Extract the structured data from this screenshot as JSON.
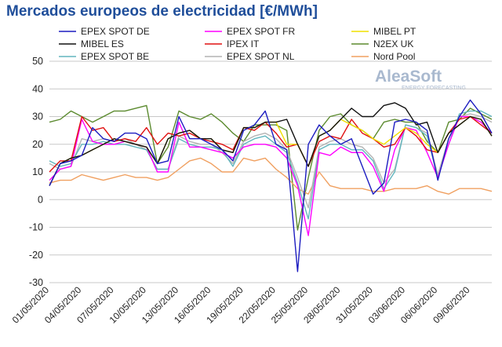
{
  "chart_data": {
    "type": "line",
    "title": "Mercados europeos de electricidad [€/MWh]",
    "watermark": {
      "brand": "AleaSoft",
      "tagline": "ENERGY FORECASTING"
    },
    "categories": [
      "01/05/2020",
      null,
      null,
      "04/05/2020",
      null,
      null,
      "07/05/2020",
      null,
      null,
      "10/05/2020",
      null,
      null,
      "13/05/2020",
      null,
      null,
      "16/05/2020",
      null,
      null,
      "19/05/2020",
      null,
      null,
      "22/05/2020",
      null,
      null,
      "25/05/2020",
      null,
      null,
      "28/05/2020",
      null,
      null,
      "31/05/2020",
      null,
      null,
      "03/06/2020",
      null,
      null,
      "06/06/2020",
      null,
      null,
      "09/06/2020",
      null,
      null
    ],
    "ylim": [
      -30,
      50
    ],
    "yticks": [
      -30,
      -20,
      -10,
      0,
      10,
      20,
      30,
      40,
      50
    ],
    "grid": true,
    "series": [
      {
        "name": "N2EX UK",
        "color": "#5b8a2e",
        "values": [
          28,
          29,
          32,
          30,
          28,
          30,
          32,
          32,
          33,
          34,
          13,
          19,
          32,
          30,
          29,
          31,
          28,
          24,
          21,
          27,
          27,
          27,
          25,
          -11,
          8,
          25,
          30,
          31,
          27,
          25,
          22,
          28,
          29,
          28,
          28,
          21,
          17,
          28,
          29,
          33,
          31,
          29
        ]
      },
      {
        "name": "Nord Pool",
        "color": "#f0a060",
        "values": [
          6,
          7,
          7,
          9,
          8,
          7,
          8,
          9,
          8,
          8,
          7,
          8,
          11,
          14,
          15,
          13,
          10,
          10,
          15,
          14,
          15,
          11,
          8,
          4,
          2,
          10,
          5,
          4,
          4,
          4,
          3,
          3,
          4,
          4,
          4,
          5,
          3,
          2,
          4,
          4,
          4,
          3
        ]
      },
      {
        "name": "EPEX SPOT NL",
        "color": "#b4b4b4",
        "values": [
          13,
          11,
          12,
          22,
          21,
          22,
          21,
          22,
          20,
          18,
          11,
          11,
          23,
          21,
          20,
          20,
          17,
          13,
          21,
          23,
          24,
          22,
          18,
          8,
          -3,
          19,
          21,
          22,
          20,
          19,
          15,
          6,
          11,
          27,
          26,
          24,
          9,
          22,
          30,
          31,
          30,
          28
        ]
      },
      {
        "name": "EPEX SPOT BE",
        "color": "#62b6be",
        "values": [
          14,
          12,
          13,
          20,
          20,
          21,
          20,
          20,
          19,
          18,
          11,
          11,
          22,
          20,
          19,
          19,
          18,
          12,
          20,
          22,
          23,
          20,
          17,
          6,
          -7,
          18,
          20,
          20,
          18,
          18,
          14,
          4,
          10,
          27,
          26,
          23,
          8,
          20,
          31,
          32,
          32,
          30
        ]
      },
      {
        "name": "EPEX SPOT FR",
        "color": "#ff00ff",
        "values": [
          7,
          11,
          12,
          29,
          21,
          20,
          20,
          21,
          20,
          19,
          10,
          10,
          28,
          19,
          19,
          18,
          17,
          15,
          19,
          20,
          20,
          19,
          15,
          5,
          -13,
          17,
          16,
          19,
          17,
          17,
          12,
          3,
          18,
          26,
          25,
          17,
          8,
          20,
          30,
          30,
          28,
          24
        ]
      },
      {
        "name": "IPEX IT",
        "color": "#e01010",
        "values": [
          10,
          14,
          14,
          30,
          25,
          26,
          21,
          22,
          21,
          26,
          20,
          24,
          23,
          24,
          22,
          21,
          20,
          18,
          26,
          25,
          28,
          24,
          19,
          20,
          12,
          21,
          23,
          22,
          29,
          24,
          22,
          19,
          20,
          26,
          23,
          18,
          17,
          24,
          29,
          30,
          27,
          24
        ]
      },
      {
        "name": "MIBEL PT",
        "color": "#f0e000",
        "values": [
          5,
          13,
          15,
          16,
          18,
          20,
          22,
          21,
          20,
          19,
          13,
          22,
          24,
          25,
          22,
          22,
          18,
          17,
          26,
          26,
          28,
          28,
          20,
          20,
          12,
          23,
          25,
          29,
          27,
          25,
          22,
          20,
          23,
          26,
          24,
          20,
          17,
          24,
          27,
          30,
          29,
          23
        ]
      },
      {
        "name": "MIBEL ES",
        "color": "#111111",
        "values": [
          5,
          13,
          15,
          16,
          18,
          20,
          22,
          21,
          20,
          19,
          13,
          22,
          24,
          25,
          22,
          22,
          18,
          17,
          26,
          26,
          28,
          28,
          29,
          20,
          12,
          23,
          25,
          29,
          33,
          30,
          30,
          34,
          35,
          33,
          27,
          28,
          17,
          24,
          27,
          30,
          29,
          23
        ]
      },
      {
        "name": "EPEX SPOT DE",
        "color": "#1c1cc0",
        "values": [
          5,
          13,
          14,
          16,
          26,
          22,
          21,
          24,
          24,
          22,
          13,
          14,
          30,
          22,
          22,
          20,
          18,
          14,
          25,
          27,
          32,
          20,
          18,
          -26,
          20,
          27,
          23,
          20,
          22,
          12,
          2,
          6,
          28,
          29,
          28,
          25,
          7,
          22,
          30,
          36,
          31,
          24
        ]
      }
    ],
    "legend_order": [
      8,
      4,
      6,
      7,
      5,
      0,
      3,
      2,
      1
    ]
  }
}
